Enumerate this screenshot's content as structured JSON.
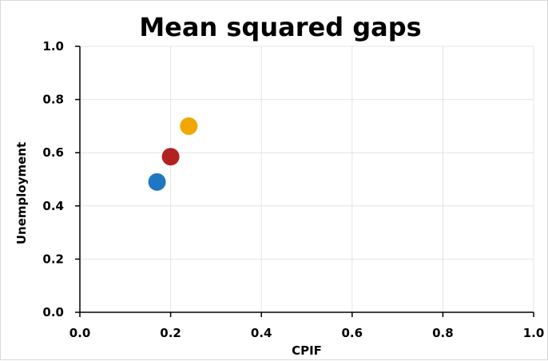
{
  "chart_data": {
    "type": "scatter",
    "title": "Mean squared gaps",
    "xlabel": "CPIF",
    "ylabel": "Unemployment",
    "xlim": [
      0,
      1
    ],
    "ylim": [
      0,
      1
    ],
    "x_ticks": [
      "0.0",
      "0.2",
      "0.4",
      "0.6",
      "0.8",
      "1.0"
    ],
    "y_ticks": [
      "0.0",
      "0.2",
      "0.4",
      "0.6",
      "0.8",
      "1.0"
    ],
    "grid": true,
    "legend": "none",
    "points": [
      {
        "x": 0.17,
        "y": 0.49,
        "color": "#1f77c4"
      },
      {
        "x": 0.2,
        "y": 0.585,
        "color": "#b22222"
      },
      {
        "x": 0.24,
        "y": 0.7,
        "color": "#f0a800"
      }
    ]
  }
}
